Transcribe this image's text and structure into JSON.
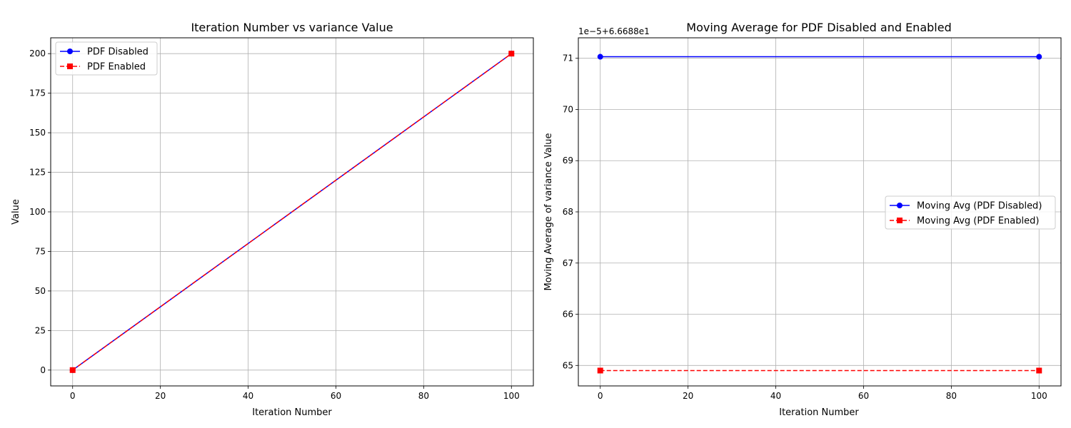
{
  "chart_data": [
    {
      "type": "line",
      "title": "Iteration Number vs variance Value",
      "xlabel": "Iteration Number",
      "ylabel": "Value",
      "xlim": [
        -5,
        105
      ],
      "ylim": [
        -10,
        210
      ],
      "xticks": [
        0,
        20,
        40,
        60,
        80,
        100
      ],
      "yticks": [
        0,
        25,
        50,
        75,
        100,
        125,
        150,
        175,
        200
      ],
      "grid": true,
      "legend": "upper-left",
      "series": [
        {
          "name": "PDF Disabled",
          "x": [
            0,
            100
          ],
          "y": [
            0,
            200
          ],
          "color": "#0000ff",
          "linestyle": "solid",
          "marker": "circle"
        },
        {
          "name": "PDF Enabled",
          "x": [
            0,
            100
          ],
          "y": [
            0,
            200
          ],
          "color": "#ff0000",
          "linestyle": "dashed",
          "marker": "square"
        }
      ]
    },
    {
      "type": "line",
      "title": "Moving Average for PDF Disabled and Enabled",
      "xlabel": "Iteration Number",
      "ylabel": "Moving Average of variance Value",
      "offset_text": "1e−5+6.6688e1",
      "xlim": [
        -5,
        105
      ],
      "ylim": [
        64.6,
        71.4
      ],
      "xticks": [
        0,
        20,
        40,
        60,
        80,
        100
      ],
      "yticks": [
        65,
        66,
        67,
        68,
        69,
        70,
        71
      ],
      "grid": true,
      "legend": "center-right",
      "series": [
        {
          "name": "Moving Avg (PDF Disabled)",
          "x": [
            0,
            100
          ],
          "y": [
            71.03,
            71.03
          ],
          "color": "#0000ff",
          "linestyle": "solid",
          "marker": "circle"
        },
        {
          "name": "Moving Avg (PDF Enabled)",
          "x": [
            0,
            100
          ],
          "y": [
            64.9,
            64.9
          ],
          "color": "#ff0000",
          "linestyle": "dashed",
          "marker": "square"
        }
      ]
    }
  ]
}
